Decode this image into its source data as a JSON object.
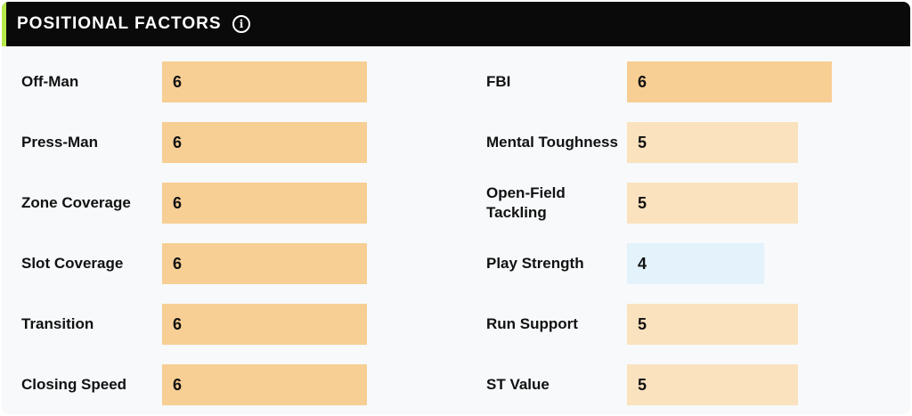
{
  "header": {
    "title": "POSITIONAL FACTORS",
    "info_icon": "info-circle-icon",
    "accent_color": "#b7e84b"
  },
  "scale_max": 8,
  "colors": {
    "6": "#f7ce93",
    "5": "#fbe2be",
    "4": "#e4f2fc"
  },
  "left_factors": [
    {
      "label": "Off-Man",
      "value": 6
    },
    {
      "label": "Press-Man",
      "value": 6
    },
    {
      "label": "Zone Coverage",
      "value": 6
    },
    {
      "label": "Slot Coverage",
      "value": 6
    },
    {
      "label": "Transition",
      "value": 6
    },
    {
      "label": "Closing Speed",
      "value": 6
    }
  ],
  "right_factors": [
    {
      "label": "FBI",
      "value": 6
    },
    {
      "label": "Mental Toughness",
      "value": 5
    },
    {
      "label": "Open-Field Tackling",
      "value": 5
    },
    {
      "label": "Play Strength",
      "value": 4
    },
    {
      "label": "Run Support",
      "value": 5
    },
    {
      "label": "ST Value",
      "value": 5
    }
  ]
}
